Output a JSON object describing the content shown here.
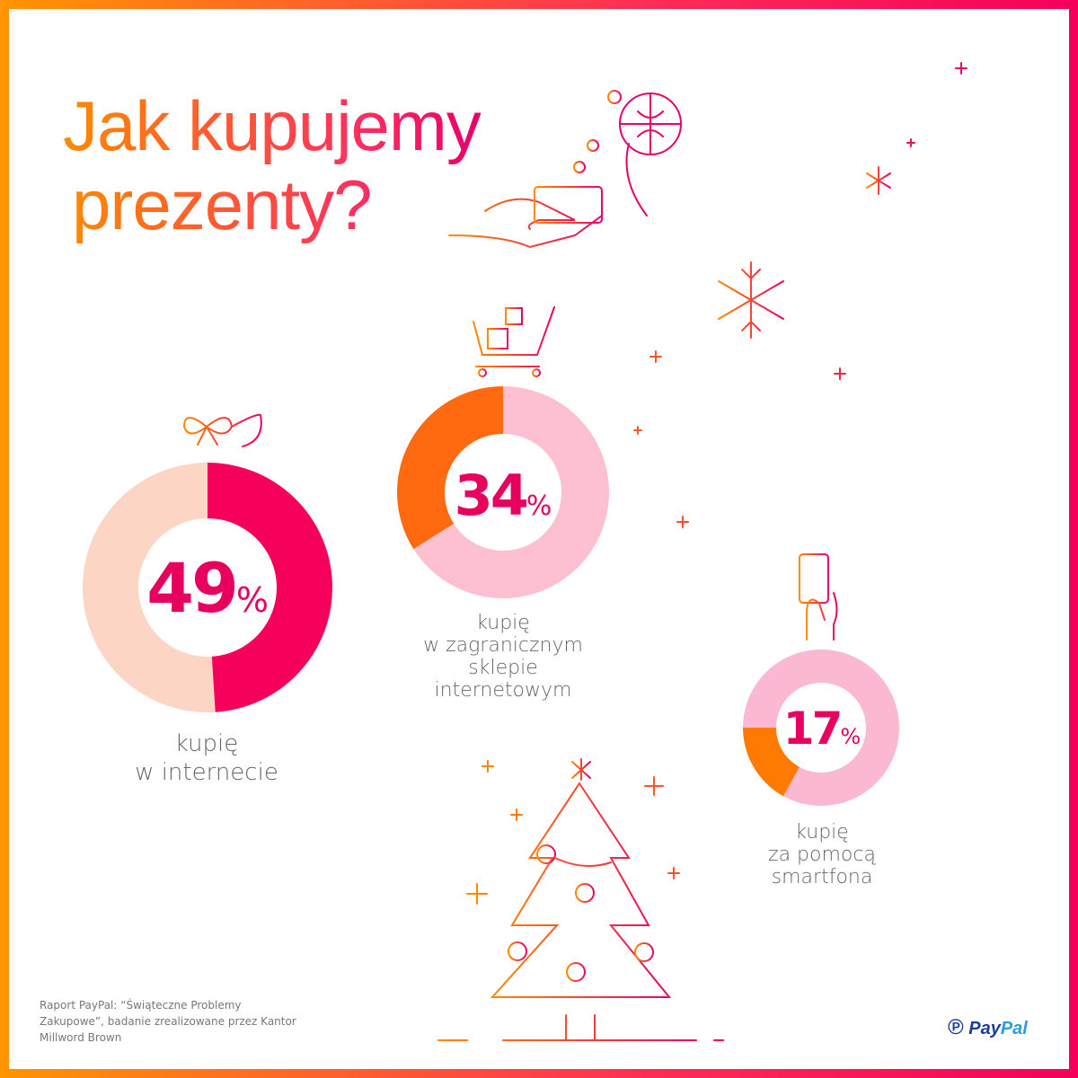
{
  "title": {
    "line1": "Jak kupujemy",
    "line2": "prezenty?"
  },
  "chart_data": [
    {
      "type": "pie",
      "donut": true,
      "value": 49,
      "unit": "%",
      "label": [
        "kupię",
        "w internecie"
      ],
      "colors": {
        "fill": "#f5005a",
        "rest": "#fdd5c4"
      }
    },
    {
      "type": "pie",
      "donut": true,
      "value": 34,
      "unit": "%",
      "label": [
        "kupię",
        "w zagranicznym",
        "sklepie",
        "internetowym"
      ],
      "colors": {
        "fill": "#ff6a10",
        "rest": "#fcc0d0"
      }
    },
    {
      "type": "pie",
      "donut": true,
      "value": 17,
      "unit": "%",
      "label": [
        "kupię",
        "za pomocą",
        "smartfona"
      ],
      "colors": {
        "fill": "#ff7a00",
        "rest": "#fbb8d3"
      }
    }
  ],
  "source": "Raport PayPal: “Świąteczne Problemy Zakupowe”, badanie zrealizowane przez Kantor Millword Brown",
  "logo": {
    "text1": "Pay",
    "text2": "Pal"
  },
  "icons": [
    "hand-card-icon",
    "gift-ornament-icon",
    "snowflake-icon",
    "shopping-cart-icon",
    "bow-icon",
    "smartphone-hand-icon",
    "christmas-tree-icon",
    "sparkle-icon"
  ]
}
